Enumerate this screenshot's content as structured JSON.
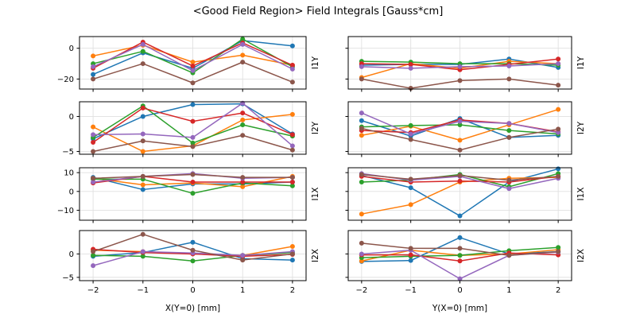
{
  "title": "<Good Field Region> Field Integrals [Gauss*cm]",
  "palette": {
    "C0": "#1f77b4",
    "C1": "#ff7f0e",
    "C2": "#2ca02c",
    "C3": "#d62728",
    "C4": "#9467bd",
    "C5": "#8c564b"
  },
  "style": {
    "grid_color": "#e0e0e0",
    "spine_color": "#000000",
    "tick_label_color": "#000000",
    "marker_radius": 3,
    "line_width": 1.5
  },
  "chart_data": [
    {
      "name": "i1y-vs-x",
      "type": "line",
      "row_label": "I1Y",
      "xlabel": "",
      "x": [
        -2,
        -1,
        0,
        1,
        2
      ],
      "xtick_labels": [
        "−2",
        "−1",
        "0",
        "1",
        "2"
      ],
      "show_xtick_labels": false,
      "yticks": [
        0,
        -20
      ],
      "ytick_labels": [
        "0",
        "−20"
      ],
      "show_ytick_labels": true,
      "ylim": [
        -26.5,
        7.6
      ],
      "series": [
        {
          "name": "series-0",
          "color": "C0",
          "values": [
            -17,
            -3,
            -13,
            5,
            1.5
          ]
        },
        {
          "name": "series-1",
          "color": "C1",
          "values": [
            -5,
            2,
            -9,
            -4.5,
            -11
          ]
        },
        {
          "name": "series-2",
          "color": "C2",
          "values": [
            -10,
            -2,
            -16,
            6,
            -12
          ]
        },
        {
          "name": "series-3",
          "color": "C3",
          "values": [
            -13,
            4,
            -11.5,
            3.5,
            -11
          ]
        },
        {
          "name": "series-4",
          "color": "C4",
          "values": [
            -12,
            2.5,
            -14.5,
            2.5,
            -13.5
          ]
        },
        {
          "name": "series-5",
          "color": "C5",
          "values": [
            -20,
            -10,
            -22.5,
            -9,
            -22
          ]
        }
      ]
    },
    {
      "name": "i1y-vs-y",
      "type": "line",
      "row_label": "I1Y",
      "xlabel": "",
      "x": [
        -2,
        -1,
        0,
        1,
        2
      ],
      "xtick_labels": [
        "−2",
        "−1",
        "0",
        "1",
        "2"
      ],
      "show_xtick_labels": false,
      "yticks": [
        0,
        -20
      ],
      "ytick_labels": [
        "0",
        "−20"
      ],
      "show_ytick_labels": false,
      "ylim": [
        -26.5,
        7.6
      ],
      "series": [
        {
          "name": "series-0",
          "color": "C0",
          "values": [
            -11,
            -10.5,
            -10.5,
            -7,
            -12.5
          ]
        },
        {
          "name": "series-1",
          "color": "C1",
          "values": [
            -19,
            -10,
            -13,
            -8.5,
            -10
          ]
        },
        {
          "name": "series-2",
          "color": "C2",
          "values": [
            -8.5,
            -9,
            -10,
            -10,
            -11
          ]
        },
        {
          "name": "series-3",
          "color": "C3",
          "values": [
            -10,
            -10.5,
            -14,
            -10.5,
            -7
          ]
        },
        {
          "name": "series-4",
          "color": "C4",
          "values": [
            -12,
            -13,
            -12,
            -11.5,
            -10
          ]
        },
        {
          "name": "series-5",
          "color": "C5",
          "values": [
            -20,
            -26,
            -21,
            -20,
            -24
          ]
        }
      ]
    },
    {
      "name": "i2y-vs-x",
      "type": "line",
      "row_label": "I2Y",
      "xlabel": "",
      "x": [
        -2,
        -1,
        0,
        1,
        2
      ],
      "xtick_labels": [
        "−2",
        "−1",
        "0",
        "1",
        "2"
      ],
      "show_xtick_labels": false,
      "yticks": [
        0,
        -5
      ],
      "ytick_labels": [
        "0",
        "−5"
      ],
      "show_ytick_labels": true,
      "ylim": [
        -5.4,
        2.1
      ],
      "series": [
        {
          "name": "series-0",
          "color": "C0",
          "values": [
            -3.2,
            0,
            1.7,
            1.8,
            -2.5
          ]
        },
        {
          "name": "series-1",
          "color": "C1",
          "values": [
            -1.5,
            -5,
            -4.2,
            -0.5,
            0.3
          ]
        },
        {
          "name": "series-2",
          "color": "C2",
          "values": [
            -3,
            1.5,
            -3.8,
            -1.2,
            -2.8
          ]
        },
        {
          "name": "series-3",
          "color": "C3",
          "values": [
            -3.7,
            1.2,
            -0.7,
            0.5,
            -2.6
          ]
        },
        {
          "name": "series-4",
          "color": "C4",
          "values": [
            -2.6,
            -2.5,
            -3,
            1.9,
            -4.2
          ]
        },
        {
          "name": "series-5",
          "color": "C5",
          "values": [
            -5,
            -3.5,
            -4.3,
            -2.7,
            -4.8
          ]
        }
      ]
    },
    {
      "name": "i2y-vs-y",
      "type": "line",
      "row_label": "I2Y",
      "xlabel": "",
      "x": [
        -2,
        -1,
        0,
        1,
        2
      ],
      "xtick_labels": [
        "−2",
        "−1",
        "0",
        "1",
        "2"
      ],
      "show_xtick_labels": false,
      "yticks": [
        0,
        -5
      ],
      "ytick_labels": [
        "0",
        "−5"
      ],
      "show_ytick_labels": false,
      "ylim": [
        -5.4,
        2.1
      ],
      "series": [
        {
          "name": "series-0",
          "color": "C0",
          "values": [
            -0.6,
            -2.8,
            -0.3,
            -3,
            -2.7
          ]
        },
        {
          "name": "series-1",
          "color": "C1",
          "values": [
            -2.7,
            -1.4,
            -3.4,
            -1.2,
            1
          ]
        },
        {
          "name": "series-2",
          "color": "C2",
          "values": [
            -1.5,
            -1.3,
            -1.2,
            -2,
            -2.5
          ]
        },
        {
          "name": "series-3",
          "color": "C3",
          "values": [
            -2,
            -2.3,
            -0.5,
            -1,
            -2.2
          ]
        },
        {
          "name": "series-4",
          "color": "C4",
          "values": [
            0.5,
            -2.5,
            -0.7,
            -1,
            -2.3
          ]
        },
        {
          "name": "series-5",
          "color": "C5",
          "values": [
            -1.7,
            -3.3,
            -4.8,
            -3,
            -1.8
          ]
        }
      ]
    },
    {
      "name": "i1x-vs-x",
      "type": "line",
      "row_label": "I1X",
      "xlabel": "",
      "x": [
        -2,
        -1,
        0,
        1,
        2
      ],
      "xtick_labels": [
        "−2",
        "−1",
        "0",
        "1",
        "2"
      ],
      "show_xtick_labels": false,
      "yticks": [
        10,
        0,
        -10
      ],
      "ytick_labels": [
        "10",
        "0",
        "−10"
      ],
      "show_ytick_labels": true,
      "ylim": [
        -15.3,
        12.6
      ],
      "series": [
        {
          "name": "series-0",
          "color": "C0",
          "values": [
            7.5,
            1,
            4,
            4,
            5
          ]
        },
        {
          "name": "series-1",
          "color": "C1",
          "values": [
            7,
            3.5,
            4.5,
            2.5,
            8
          ]
        },
        {
          "name": "series-2",
          "color": "C2",
          "values": [
            6.5,
            6.5,
            -1,
            4.5,
            3
          ]
        },
        {
          "name": "series-3",
          "color": "C3",
          "values": [
            4.5,
            8,
            5,
            5,
            5
          ]
        },
        {
          "name": "series-4",
          "color": "C4",
          "values": [
            5,
            8,
            9.5,
            7,
            7.5
          ]
        },
        {
          "name": "series-5",
          "color": "C5",
          "values": [
            7,
            8,
            9,
            7.5,
            7.5
          ]
        }
      ]
    },
    {
      "name": "i1x-vs-y",
      "type": "line",
      "row_label": "I1X",
      "xlabel": "",
      "x": [
        -2,
        -1,
        0,
        1,
        2
      ],
      "xtick_labels": [
        "−2",
        "−1",
        "0",
        "1",
        "2"
      ],
      "show_xtick_labels": false,
      "yticks": [
        10,
        0,
        -10
      ],
      "ytick_labels": [
        "10",
        "0",
        "−10"
      ],
      "show_ytick_labels": false,
      "ylim": [
        -15.3,
        12.6
      ],
      "series": [
        {
          "name": "series-0",
          "color": "C0",
          "values": [
            8.5,
            2,
            -13,
            5,
            12
          ]
        },
        {
          "name": "series-1",
          "color": "C1",
          "values": [
            -12,
            -7,
            5,
            7,
            7.5
          ]
        },
        {
          "name": "series-2",
          "color": "C2",
          "values": [
            5,
            6,
            9,
            2.5,
            9.5
          ]
        },
        {
          "name": "series-3",
          "color": "C3",
          "values": [
            8,
            5,
            5.5,
            5,
            8
          ]
        },
        {
          "name": "series-4",
          "color": "C4",
          "values": [
            9.5,
            6,
            8,
            1.5,
            7
          ]
        },
        {
          "name": "series-5",
          "color": "C5",
          "values": [
            9,
            6.5,
            8.5,
            6,
            8
          ]
        }
      ]
    },
    {
      "name": "i2x-vs-x",
      "type": "line",
      "row_label": "I2X",
      "xlabel": "X(Y=0) [mm]",
      "x": [
        -2,
        -1,
        0,
        1,
        2
      ],
      "xtick_labels": [
        "−2",
        "−1",
        "0",
        "1",
        "2"
      ],
      "show_xtick_labels": true,
      "yticks": [
        0,
        -5
      ],
      "ytick_labels": [
        "0",
        "−5"
      ],
      "show_ytick_labels": true,
      "ylim": [
        -5.7,
        5.0
      ],
      "series": [
        {
          "name": "series-0",
          "color": "C0",
          "values": [
            -0.5,
            0.3,
            2.5,
            -1,
            -1.3
          ]
        },
        {
          "name": "series-1",
          "color": "C1",
          "values": [
            0.8,
            0.5,
            0,
            -0.3,
            1.6
          ]
        },
        {
          "name": "series-2",
          "color": "C2",
          "values": [
            -0.3,
            -0.5,
            -1.5,
            -0.3,
            0.3
          ]
        },
        {
          "name": "series-3",
          "color": "C3",
          "values": [
            1,
            0.3,
            0,
            -0.5,
            -0.1
          ]
        },
        {
          "name": "series-4",
          "color": "C4",
          "values": [
            -2.5,
            0.5,
            0.2,
            -0.3,
            0.5
          ]
        },
        {
          "name": "series-5",
          "color": "C5",
          "values": [
            0.5,
            4.2,
            0.8,
            -1.3,
            0
          ]
        }
      ]
    },
    {
      "name": "i2x-vs-y",
      "type": "line",
      "row_label": "I2X",
      "xlabel": "Y(X=0) [mm]",
      "x": [
        -2,
        -1,
        0,
        1,
        2
      ],
      "xtick_labels": [
        "−2",
        "−1",
        "0",
        "1",
        "2"
      ],
      "show_xtick_labels": true,
      "yticks": [
        0,
        -5
      ],
      "ytick_labels": [
        "0",
        "−5"
      ],
      "show_ytick_labels": false,
      "ylim": [
        -5.7,
        5.0
      ],
      "series": [
        {
          "name": "series-0",
          "color": "C0",
          "values": [
            -1.6,
            -1.4,
            3.5,
            0,
            0.5
          ]
        },
        {
          "name": "series-1",
          "color": "C1",
          "values": [
            -1.5,
            0.8,
            -0.3,
            0,
            0.9
          ]
        },
        {
          "name": "series-2",
          "color": "C2",
          "values": [
            -0.8,
            -0.5,
            -0.3,
            0.7,
            1.4
          ]
        },
        {
          "name": "series-3",
          "color": "C3",
          "values": [
            -0.2,
            -0.2,
            -1.5,
            0.2,
            -0.2
          ]
        },
        {
          "name": "series-4",
          "color": "C4",
          "values": [
            0,
            0.8,
            -5.3,
            -0.3,
            0.4
          ]
        },
        {
          "name": "series-5",
          "color": "C5",
          "values": [
            2.3,
            1.2,
            1.2,
            -0.3,
            0.5
          ]
        }
      ]
    }
  ]
}
